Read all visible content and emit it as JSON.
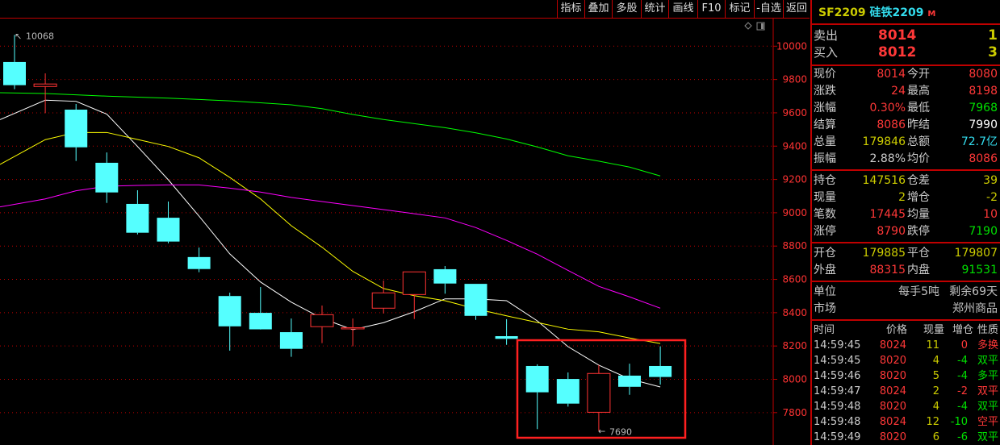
{
  "toolbar": {
    "buttons": [
      "指标",
      "叠加",
      "多股",
      "统计",
      "画线",
      "F10",
      "标记",
      "-自选",
      "返回"
    ]
  },
  "chart_icons": [
    "diamond-icon",
    "window-icon"
  ],
  "colors": {
    "up": "#ff3333",
    "down": "#55ffff",
    "ma5": "#ffffff",
    "ma10": "#ffff00",
    "ma20": "#ff00ff",
    "ma60": "#00ff00",
    "grid": "#c00000",
    "highlight": "#ff2020"
  },
  "chart_data": {
    "type": "candlestick",
    "ylim": [
      7700,
      10100
    ],
    "yticks": [
      10000,
      9800,
      9600,
      9400,
      9200,
      9000,
      8800,
      8600,
      8400,
      8200,
      8000,
      7800
    ],
    "grid": true,
    "annotations": {
      "high": "10068",
      "low": "7690"
    },
    "candles": [
      {
        "o": 9905,
        "h": 10068,
        "l": 9742,
        "c": 9766
      },
      {
        "o": 9758,
        "h": 9837,
        "l": 9598,
        "c": 9773
      },
      {
        "o": 9619,
        "h": 9653,
        "l": 9311,
        "c": 9393
      },
      {
        "o": 9300,
        "h": 9362,
        "l": 9059,
        "c": 9122
      },
      {
        "o": 9053,
        "h": 9135,
        "l": 8870,
        "c": 8880
      },
      {
        "o": 8970,
        "h": 9067,
        "l": 8817,
        "c": 8827
      },
      {
        "o": 8734,
        "h": 8791,
        "l": 8643,
        "c": 8662
      },
      {
        "o": 8500,
        "h": 8520,
        "l": 8172,
        "c": 8318
      },
      {
        "o": 8399,
        "h": 8554,
        "l": 8299,
        "c": 8300
      },
      {
        "o": 8283,
        "h": 8365,
        "l": 8135,
        "c": 8183
      },
      {
        "o": 8316,
        "h": 8443,
        "l": 8217,
        "c": 8388
      },
      {
        "o": 8305,
        "h": 8365,
        "l": 8198,
        "c": 8310
      },
      {
        "o": 8427,
        "h": 8593,
        "l": 8395,
        "c": 8519
      },
      {
        "o": 8509,
        "h": 8645,
        "l": 8362,
        "c": 8645
      },
      {
        "o": 8661,
        "h": 8680,
        "l": 8514,
        "c": 8575
      },
      {
        "o": 8573,
        "h": 8573,
        "l": 8357,
        "c": 8381
      },
      {
        "o": 8259,
        "h": 8361,
        "l": 8207,
        "c": 8243
      },
      {
        "o": 8080,
        "h": 8090,
        "l": 7701,
        "c": 7922
      },
      {
        "o": 8002,
        "h": 8041,
        "l": 7836,
        "c": 7854
      },
      {
        "o": 7802,
        "h": 8086,
        "l": 7690,
        "c": 8035
      },
      {
        "o": 8022,
        "h": 8094,
        "l": 7907,
        "c": 7955
      },
      {
        "o": 8080,
        "h": 8198,
        "l": 7968,
        "c": 8014
      }
    ],
    "ma": [
      {
        "key": "ma5",
        "values": [
          9676,
          9676,
          9669,
          9592,
          9398,
          9198,
          8980,
          8753,
          8584,
          8463,
          8366,
          8298,
          8340,
          8406,
          8483,
          8483,
          8472,
          8351,
          8196,
          8085,
          8002,
          7954
        ],
        "lead": 9559
      },
      {
        "key": "ma10",
        "values": [
          9439,
          9439,
          9482,
          9482,
          9440,
          9398,
          9330,
          9212,
          9083,
          8922,
          8793,
          8648,
          8545,
          8502,
          8472,
          8423,
          8381,
          8341,
          8301,
          8285,
          8248,
          8215
        ],
        "lead": 9290
      },
      {
        "key": "ma20",
        "values": [
          9083,
          9083,
          9132,
          9159,
          9164,
          9167,
          9167,
          9148,
          9124,
          9092,
          9067,
          9043,
          9019,
          8994,
          8969,
          8911,
          8834,
          8751,
          8654,
          8558,
          8495,
          8427
        ],
        "lead": 9035
      },
      {
        "key": "ma60",
        "values": [
          9716,
          9716,
          9708,
          9700,
          9694,
          9688,
          9680,
          9672,
          9660,
          9648,
          9625,
          9590,
          9560,
          9535,
          9511,
          9480,
          9443,
          9395,
          9342,
          9310,
          9274,
          9221
        ],
        "lead": 9721
      }
    ]
  },
  "quote": {
    "code": "SF2209",
    "name": "硅铁2209",
    "period": "M",
    "ask_label": "卖出",
    "ask_price": "8014",
    "ask_vol": "1",
    "bid_label": "买入",
    "bid_price": "8012",
    "bid_vol": "3",
    "rows1": [
      [
        "现价",
        "8014",
        "今开",
        "8080"
      ],
      [
        "涨跌",
        "24",
        "最高",
        "8198"
      ],
      [
        "涨幅",
        "0.30%",
        "最低",
        "7968"
      ],
      [
        "结算",
        "8086",
        "昨结",
        "7990"
      ],
      [
        "总量",
        "179846",
        "总额",
        "72.7亿"
      ],
      [
        "振幅",
        "2.88%",
        "均价",
        "8086"
      ]
    ],
    "rows2": [
      [
        "持仓",
        "147516",
        "仓差",
        "39"
      ],
      [
        "现量",
        "2",
        "增仓",
        "-2"
      ],
      [
        "笔数",
        "17445",
        "均量",
        "10"
      ],
      [
        "涨停",
        "8790",
        "跌停",
        "7190"
      ]
    ],
    "rows3": [
      [
        "开仓",
        "179885",
        "平仓",
        "179807"
      ],
      [
        "外盘",
        "88315",
        "内盘",
        "91531"
      ]
    ],
    "unit_label": "单位",
    "unit_value": "每手5吨",
    "remain": "剩余69天",
    "market_label": "市场",
    "market_value": "郑州商品"
  },
  "ticks": {
    "headers": [
      "时间",
      "价格",
      "现量",
      "增仓",
      "性质"
    ],
    "rows": [
      [
        "14:59:45",
        "8024",
        "11",
        "0",
        "多换"
      ],
      [
        "14:59:45",
        "8020",
        "4",
        "-4",
        "双平"
      ],
      [
        "14:59:46",
        "8020",
        "5",
        "-4",
        "多平"
      ],
      [
        "14:59:47",
        "8024",
        "2",
        "-2",
        "双平"
      ],
      [
        "14:59:48",
        "8020",
        "4",
        "-4",
        "双平"
      ],
      [
        "14:59:48",
        "8024",
        "12",
        "-10",
        "空平"
      ],
      [
        "14:59:49",
        "8020",
        "6",
        "-6",
        "双平"
      ]
    ]
  }
}
